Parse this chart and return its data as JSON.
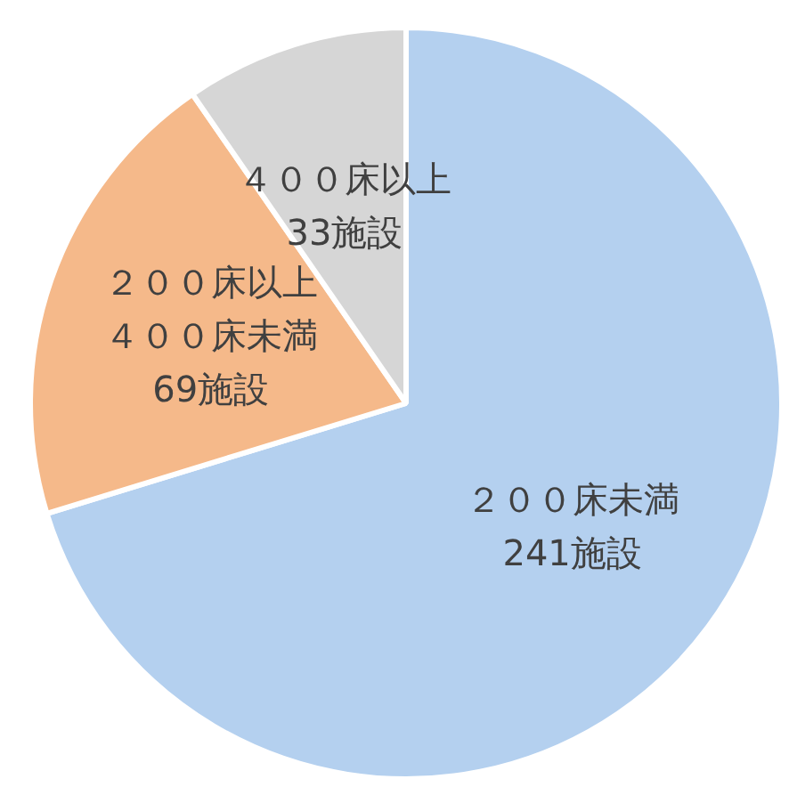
{
  "chart_data": {
    "type": "pie",
    "categories": [
      "２００床未満",
      "２００床以上４００床未満",
      "４００床以上"
    ],
    "values": [
      241,
      69,
      33
    ],
    "value_labels": [
      "241施設",
      "69施設",
      "33施設"
    ],
    "colors": [
      "#b4d0ef",
      "#f5b98a",
      "#d6d6d6"
    ]
  }
}
